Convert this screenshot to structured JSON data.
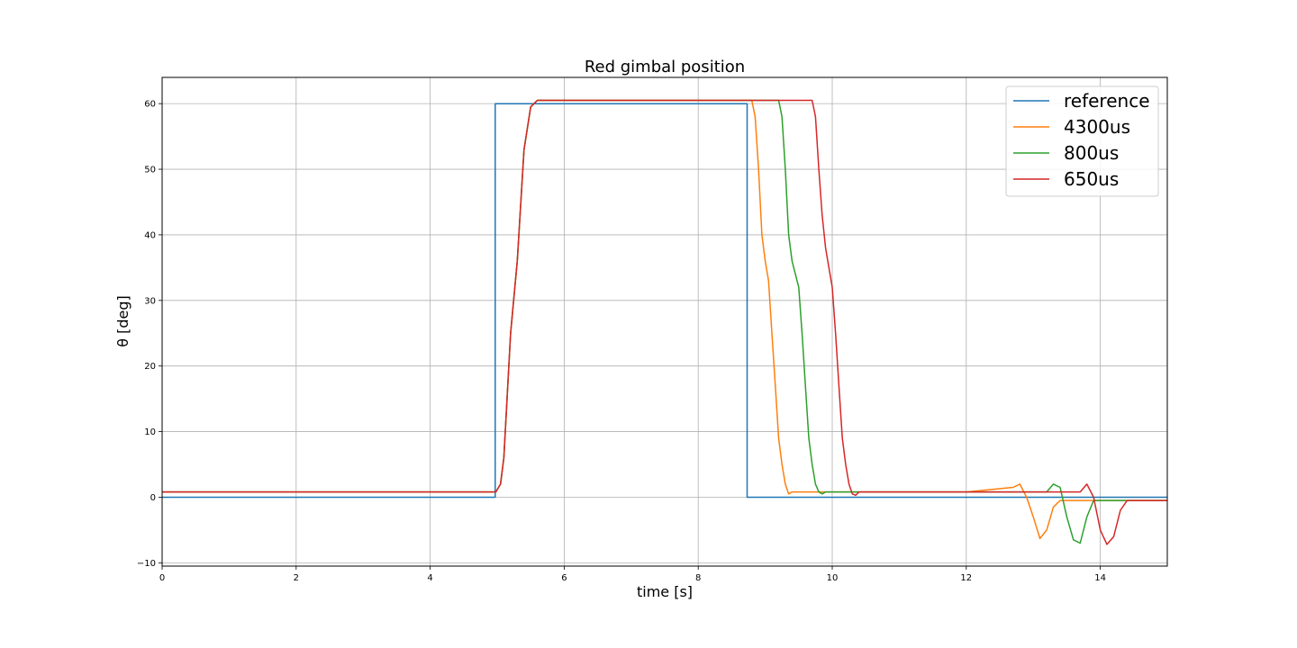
{
  "chart_data": {
    "type": "line",
    "title": "Red gimbal position",
    "xlabel": "time [s]",
    "ylabel": "θ [deg]",
    "xlim": [
      0,
      15
    ],
    "ylim": [
      -10.5,
      64
    ],
    "xticks": [
      0,
      2,
      4,
      6,
      8,
      10,
      12,
      14
    ],
    "yticks": [
      -10,
      0,
      10,
      20,
      30,
      40,
      50,
      60
    ],
    "grid": true,
    "legend_position": "top-right",
    "series": [
      {
        "name": "reference",
        "color": "#1f77b4",
        "x": [
          0,
          4.97,
          4.97,
          8.73,
          8.73,
          15
        ],
        "y": [
          0,
          0,
          60,
          60,
          0,
          0
        ]
      },
      {
        "name": "4300us",
        "color": "#ff7f0e",
        "x": [
          0,
          4.98,
          5.05,
          5.1,
          5.2,
          5.3,
          5.4,
          5.5,
          5.6,
          5.7,
          6.0,
          8.0,
          8.8,
          8.85,
          8.9,
          8.95,
          9.0,
          9.05,
          9.1,
          9.15,
          9.2,
          9.25,
          9.3,
          9.35,
          9.4,
          9.45,
          9.5,
          9.6,
          10.0,
          12.0,
          12.7,
          12.8,
          12.9,
          13.0,
          13.1,
          13.2,
          13.3,
          13.4,
          13.6,
          14.0,
          14.5,
          15.0
        ],
        "y": [
          0.8,
          0.8,
          2,
          6,
          25,
          36,
          53,
          59.5,
          60.5,
          60.5,
          60.5,
          60.5,
          60.5,
          58,
          50,
          40,
          36,
          33,
          25,
          17,
          9,
          5,
          2,
          0.5,
          0.8,
          0.8,
          0.8,
          0.8,
          0.8,
          0.8,
          1.5,
          2,
          0,
          -3,
          -6.3,
          -5,
          -1.5,
          -0.5,
          -0.5,
          -0.5,
          -0.5,
          -0.5
        ]
      },
      {
        "name": "800us",
        "color": "#2ca02c",
        "x": [
          0,
          4.98,
          5.05,
          5.1,
          5.2,
          5.3,
          5.4,
          5.5,
          5.6,
          5.7,
          6.0,
          8.0,
          9.2,
          9.25,
          9.3,
          9.35,
          9.4,
          9.5,
          9.55,
          9.6,
          9.65,
          9.7,
          9.75,
          9.8,
          9.85,
          9.9,
          10.0,
          10.2,
          12.0,
          13.2,
          13.3,
          13.4,
          13.5,
          13.6,
          13.7,
          13.8,
          13.9,
          14.0,
          14.5,
          15.0
        ],
        "y": [
          0.8,
          0.8,
          2,
          6,
          25,
          36,
          53,
          59.5,
          60.5,
          60.5,
          60.5,
          60.5,
          60.5,
          58,
          50,
          40,
          36,
          32,
          25,
          17,
          9,
          5,
          2,
          0.8,
          0.5,
          0.8,
          0.8,
          0.8,
          0.8,
          0.8,
          2,
          1.5,
          -3,
          -6.5,
          -7,
          -3,
          -0.5,
          -0.5,
          -0.5,
          -0.5
        ]
      },
      {
        "name": "650us",
        "color": "#d62728",
        "x": [
          0,
          4.98,
          5.05,
          5.1,
          5.2,
          5.3,
          5.4,
          5.5,
          5.6,
          5.7,
          6.0,
          8.0,
          9.7,
          9.75,
          9.8,
          9.85,
          9.9,
          10.0,
          10.05,
          10.1,
          10.15,
          10.2,
          10.25,
          10.3,
          10.35,
          10.4,
          10.45,
          10.6,
          12.0,
          13.7,
          13.8,
          13.9,
          14.0,
          14.1,
          14.2,
          14.3,
          14.4,
          14.5,
          15.0
        ],
        "y": [
          0.8,
          0.8,
          2,
          6,
          25,
          36,
          53,
          59.5,
          60.5,
          60.5,
          60.5,
          60.5,
          60.5,
          58,
          50,
          43,
          38,
          32,
          25,
          17,
          9,
          5,
          2,
          0.5,
          0.3,
          0.8,
          0.8,
          0.8,
          0.8,
          0.8,
          2,
          0,
          -5,
          -7.2,
          -6,
          -2,
          -0.5,
          -0.5,
          -0.5
        ]
      }
    ]
  }
}
